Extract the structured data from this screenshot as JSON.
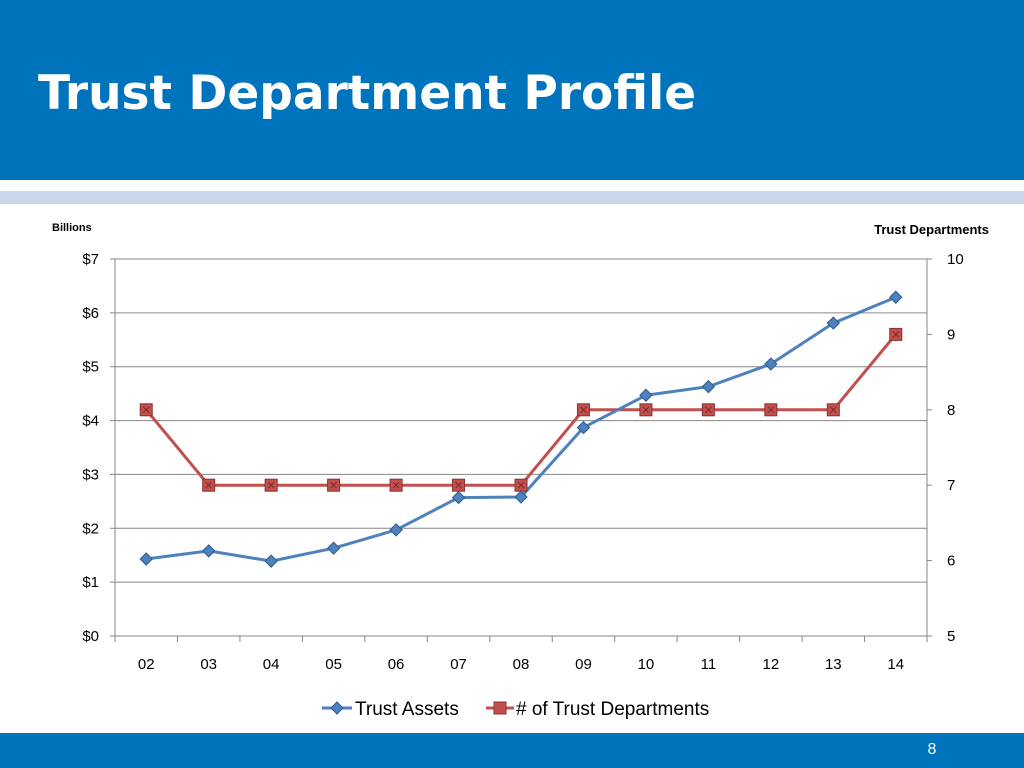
{
  "slide": {
    "title": "Trust Department Profile",
    "page_number": "8"
  },
  "colors": {
    "header": "#0073bd",
    "subband": "#c9d7e9",
    "assets_series": "#4f81bd",
    "departments_series": "#c0504d"
  },
  "chart_data": {
    "type": "line",
    "categories": [
      "02",
      "03",
      "04",
      "05",
      "06",
      "07",
      "08",
      "09",
      "10",
      "11",
      "12",
      "13",
      "14"
    ],
    "left_axis": {
      "unit_label": "Billions",
      "range": [
        0,
        7
      ],
      "ticks": [
        0,
        1,
        2,
        3,
        4,
        5,
        6,
        7
      ],
      "tick_labels": [
        "$0",
        "$1",
        "$2",
        "$3",
        "$4",
        "$5",
        "$6",
        "$7"
      ]
    },
    "right_axis": {
      "label": "Trust Departments",
      "range": [
        5,
        10
      ],
      "ticks": [
        5,
        6,
        7,
        8,
        9,
        10
      ],
      "tick_labels": [
        "5",
        "6",
        "7",
        "8",
        "9",
        "10"
      ]
    },
    "series": [
      {
        "name": "Trust Assets",
        "axis": "left",
        "marker": "diamond",
        "values": [
          1.43,
          1.58,
          1.39,
          1.63,
          1.97,
          2.57,
          2.58,
          3.87,
          4.47,
          4.63,
          5.05,
          5.81,
          6.29
        ]
      },
      {
        "name": "# of Trust Departments",
        "axis": "right",
        "marker": "square",
        "values": [
          8,
          7,
          7,
          7,
          7,
          7,
          7,
          8,
          8,
          8,
          8,
          8,
          9
        ]
      }
    ],
    "grid": true,
    "legend_position": "bottom"
  }
}
